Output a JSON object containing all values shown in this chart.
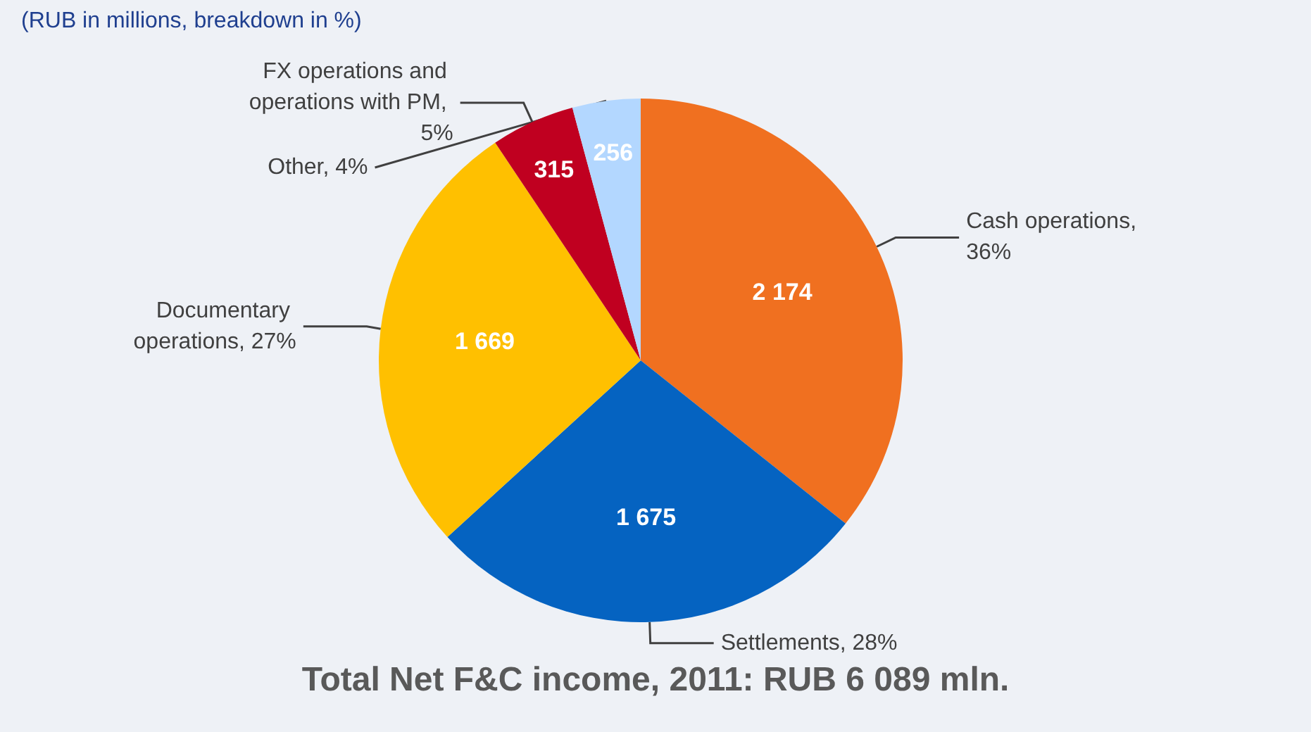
{
  "chart_data": {
    "type": "pie",
    "title": "Total Net F&C income, 2011: RUB 6 089 mln.",
    "subtitle": "(RUB in millions, breakdown in %)",
    "categories": [
      "Cash operations, 36%",
      "Settlements, 28%",
      "Documentary operations, 27%",
      "FX operations and operations with PM, 5%",
      "Other, 4%"
    ],
    "values": [
      2174,
      1675,
      1669,
      315,
      256
    ],
    "value_labels": [
      "2 174",
      "1 675",
      "1 669",
      "315",
      "256"
    ],
    "colors": [
      "#f07020",
      "#0563c1",
      "#ffc000",
      "#c00020",
      "#b3d7ff"
    ],
    "legend": false
  }
}
